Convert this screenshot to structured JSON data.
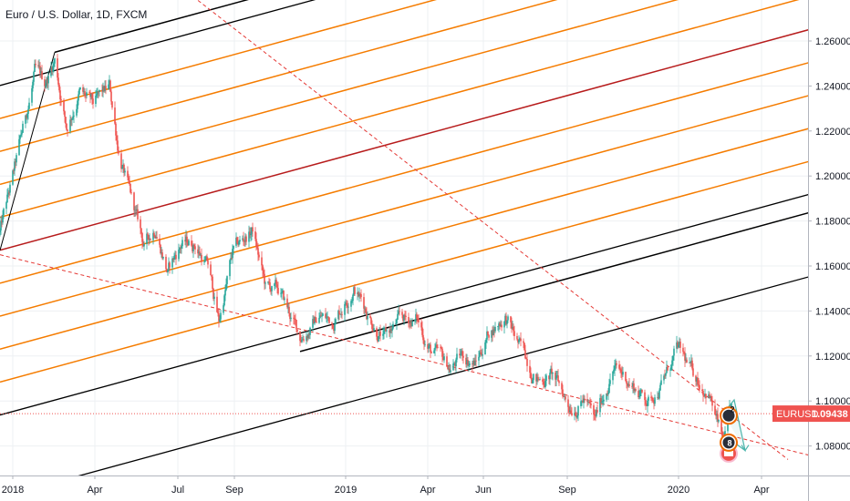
{
  "chart_data": {
    "type": "candlestick",
    "title": "Euro / U.S. Dollar, 1D, FXCM",
    "symbol": "EURUSD",
    "last_price": "1.09438",
    "x_ticks": [
      "2018",
      "Apr",
      "Jul",
      "Sep",
      "2019",
      "Apr",
      "Jun",
      "Sep",
      "2020",
      "Apr"
    ],
    "y_ticks": [
      "1.26000",
      "1.24000",
      "1.22000",
      "1.20000",
      "1.18000",
      "1.16000",
      "1.14000",
      "1.12000",
      "1.10000",
      "1.08000"
    ],
    "ylim": [
      1.0725,
      1.2775
    ],
    "grid": true,
    "colors": {
      "up": "#26a69a",
      "down": "#ef5350",
      "channel": "#000000",
      "median": "#b71c1c",
      "parallel": "#f57c00",
      "dashed": "#e53935",
      "last_price": "#ef5350"
    },
    "price_path": [
      [
        "2017-12-18",
        1.175
      ],
      [
        "2018-01-02",
        1.2
      ],
      [
        "2018-01-15",
        1.225
      ],
      [
        "2018-01-25",
        1.245
      ],
      [
        "2018-02-05",
        1.24
      ],
      [
        "2018-02-16",
        1.252
      ],
      [
        "2018-03-01",
        1.222
      ],
      [
        "2018-03-15",
        1.238
      ],
      [
        "2018-03-30",
        1.23
      ],
      [
        "2018-04-17",
        1.238
      ],
      [
        "2018-04-27",
        1.212
      ],
      [
        "2018-05-10",
        1.19
      ],
      [
        "2018-05-25",
        1.168
      ],
      [
        "2018-06-07",
        1.178
      ],
      [
        "2018-06-20",
        1.158
      ],
      [
        "2018-07-05",
        1.17
      ],
      [
        "2018-07-20",
        1.17
      ],
      [
        "2018-08-03",
        1.16
      ],
      [
        "2018-08-15",
        1.135
      ],
      [
        "2018-08-30",
        1.165
      ],
      [
        "2018-09-21",
        1.176
      ],
      [
        "2018-10-05",
        1.15
      ],
      [
        "2018-10-20",
        1.148
      ],
      [
        "2018-11-12",
        1.128
      ],
      [
        "2018-12-03",
        1.138
      ],
      [
        "2018-12-17",
        1.135
      ],
      [
        "2019-01-10",
        1.152
      ],
      [
        "2019-01-25",
        1.14
      ],
      [
        "2019-02-12",
        1.128
      ],
      [
        "2019-03-01",
        1.135
      ],
      [
        "2019-03-20",
        1.136
      ],
      [
        "2019-04-05",
        1.122
      ],
      [
        "2019-04-25",
        1.114
      ],
      [
        "2019-05-10",
        1.12
      ],
      [
        "2019-05-24",
        1.117
      ],
      [
        "2019-06-07",
        1.131
      ],
      [
        "2019-06-25",
        1.138
      ],
      [
        "2019-07-10",
        1.124
      ],
      [
        "2019-08-01",
        1.11
      ],
      [
        "2019-08-15",
        1.112
      ],
      [
        "2019-09-03",
        1.098
      ],
      [
        "2019-09-20",
        1.102
      ],
      [
        "2019-10-01",
        1.09
      ],
      [
        "2019-10-21",
        1.115
      ],
      [
        "2019-11-05",
        1.11
      ],
      [
        "2019-11-29",
        1.1
      ],
      [
        "2019-12-16",
        1.11
      ],
      [
        "2019-12-31",
        1.122
      ],
      [
        "2020-01-15",
        1.112
      ],
      [
        "2020-02-03",
        1.105
      ],
      [
        "2020-02-19",
        1.08
      ],
      [
        "2020-02-28",
        1.095
      ]
    ],
    "annotations": [
      {
        "label": "2",
        "date": "2020-02-23",
        "price": 1.0935
      },
      {
        "label": "8",
        "date": "2020-02-23",
        "price": 1.0815
      }
    ],
    "projection": [
      [
        "2020-02-19",
        1.0945
      ],
      [
        "2020-03-02",
        1.1005
      ],
      [
        "2020-03-14",
        1.078
      ],
      [
        "2020-02-26",
        1.083
      ]
    ],
    "pitchfork": {
      "pivot": [
        "2017-12-18",
        1.167
      ],
      "high": [
        "2018-02-16",
        1.255
      ],
      "low": [
        "2018-11-12",
        1.122
      ],
      "end_date": "2020-07-01"
    },
    "parallels_above_median_fraction": [
      0.18,
      0.36,
      0.54,
      0.72
    ],
    "parallels_below_median_fraction": [
      0.18,
      0.36,
      0.54,
      0.72
    ],
    "dashed_lines": [
      {
        "from": [
          "2017-12-18",
          1.165
        ],
        "to": [
          "2020-07-01",
          1.072
        ]
      },
      {
        "from": [
          "2018-07-01",
          1.285
        ],
        "to": [
          "2020-04-30",
          1.074
        ]
      }
    ]
  }
}
